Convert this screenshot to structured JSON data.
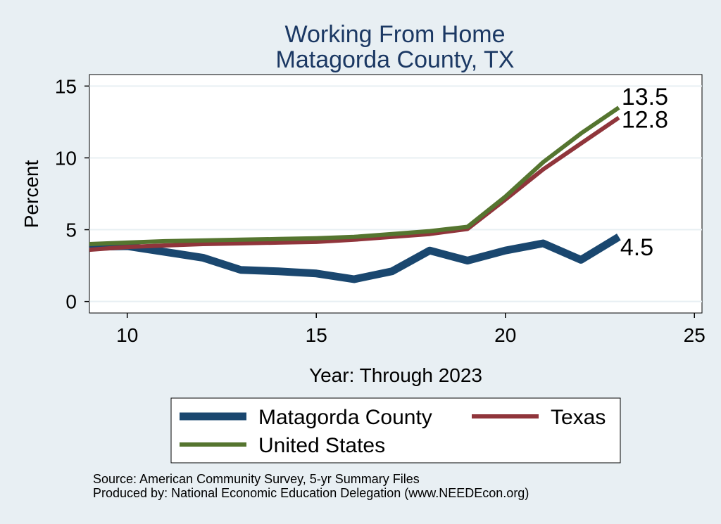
{
  "chart_data": {
    "type": "line",
    "title": [
      "Working From Home",
      "Matagorda County, TX"
    ],
    "xlabel": "Year: Through 2023",
    "ylabel": "Percent",
    "xlim": [
      9,
      25.2
    ],
    "ylim": [
      -0.8,
      15.8
    ],
    "xticks": [
      10,
      15,
      20,
      25
    ],
    "yticks": [
      0,
      5,
      10,
      15
    ],
    "grid": true,
    "legend_position": "bottom",
    "series": [
      {
        "name": "Matagorda County",
        "color": "#1a476f",
        "width": 11,
        "x": [
          9,
          10,
          11,
          12,
          13,
          14,
          15,
          16,
          17,
          18,
          19,
          20,
          21,
          22,
          23
        ],
        "y": [
          3.8,
          3.85,
          3.45,
          3.05,
          2.2,
          2.1,
          1.95,
          1.55,
          2.1,
          3.55,
          2.85,
          3.55,
          4.05,
          2.9,
          4.5
        ],
        "end_label": "4.5"
      },
      {
        "name": "Texas",
        "color": "#90353b",
        "width": 6,
        "x": [
          9,
          10,
          11,
          12,
          13,
          14,
          15,
          16,
          17,
          18,
          19,
          20,
          21,
          22,
          23
        ],
        "y": [
          3.6,
          3.8,
          3.9,
          4.0,
          4.05,
          4.1,
          4.15,
          4.3,
          4.5,
          4.7,
          5.05,
          7.1,
          9.2,
          11.0,
          12.8
        ],
        "end_label": "12.8"
      },
      {
        "name": "United States",
        "color": "#55752f",
        "width": 6,
        "x": [
          9,
          10,
          11,
          12,
          13,
          14,
          15,
          16,
          17,
          18,
          19,
          20,
          21,
          22,
          23
        ],
        "y": [
          4.0,
          4.1,
          4.2,
          4.25,
          4.3,
          4.35,
          4.4,
          4.5,
          4.7,
          4.9,
          5.2,
          7.3,
          9.7,
          11.7,
          13.5
        ],
        "end_label": "13.5"
      }
    ]
  },
  "legend": {
    "items": [
      "Matagorda County",
      "Texas",
      "United States"
    ]
  },
  "source": {
    "line1": "Source: American Community Survey, 5-yr Summary Files",
    "line2": "Produced by: National Economic Education Delegation (www.NEEDEcon.org)"
  }
}
